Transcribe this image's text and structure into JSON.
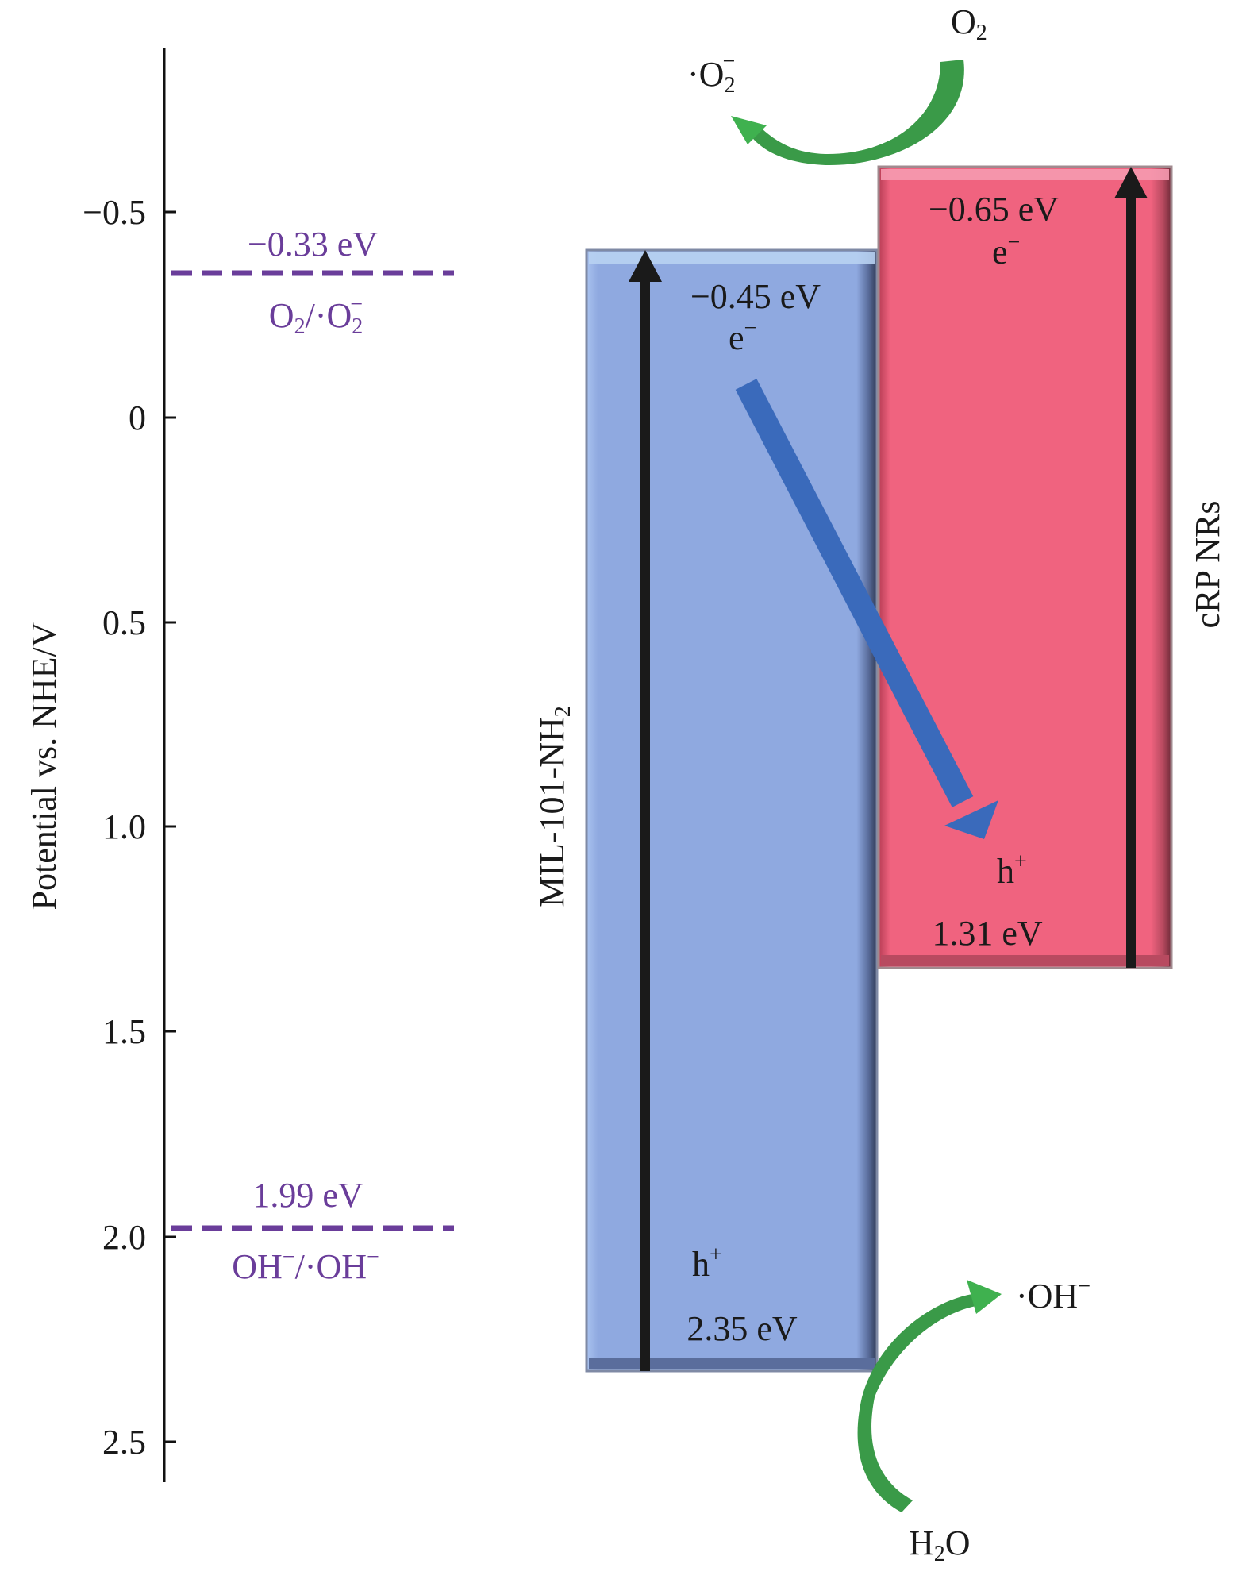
{
  "axis": {
    "label": "Potential vs. NHE/V",
    "ticks": [
      "−0.5",
      "0",
      "0.5",
      "1.0",
      "1.5",
      "2.0",
      "2.5"
    ],
    "tick_values": [
      -0.5,
      0,
      0.5,
      1.0,
      1.5,
      2.0,
      2.5
    ]
  },
  "levels": [
    {
      "value": -0.33,
      "label": "−0.33 eV",
      "couple": [
        "O",
        "2",
        "/·O",
        "2",
        "−"
      ]
    },
    {
      "value": 1.99,
      "label": "1.99 eV",
      "couple": [
        "OH",
        "−",
        "/·OH",
        "−"
      ]
    }
  ],
  "materials": [
    {
      "name_parts": [
        "MIL-101-NH",
        "2"
      ],
      "cb_label": "−0.45 eV",
      "vb_label": "2.35 eV",
      "cb": -0.45,
      "vb": 2.35,
      "electron": [
        "e",
        "−"
      ],
      "hole": [
        "h",
        "+"
      ],
      "color": "#8fa9e0"
    },
    {
      "name": "cRP NRs",
      "cb_label": "−0.65 eV",
      "vb_label": "1.31 eV",
      "cb": -0.65,
      "vb": 1.31,
      "electron": [
        "e",
        "−"
      ],
      "hole": [
        "h",
        "+"
      ],
      "color": "#f0637f",
      "name_color": "#e8383d"
    }
  ],
  "species": {
    "o2": [
      "O",
      "2"
    ],
    "superoxide": [
      "·O",
      "2",
      "−"
    ],
    "water": [
      "H",
      "2",
      "O"
    ],
    "hydroxyl": [
      "·OH",
      "−"
    ]
  },
  "colors": {
    "level_line": "#6a3d9a",
    "transfer_arrow": "#3a6abb",
    "reaction_arrow": "#3fb14f"
  }
}
